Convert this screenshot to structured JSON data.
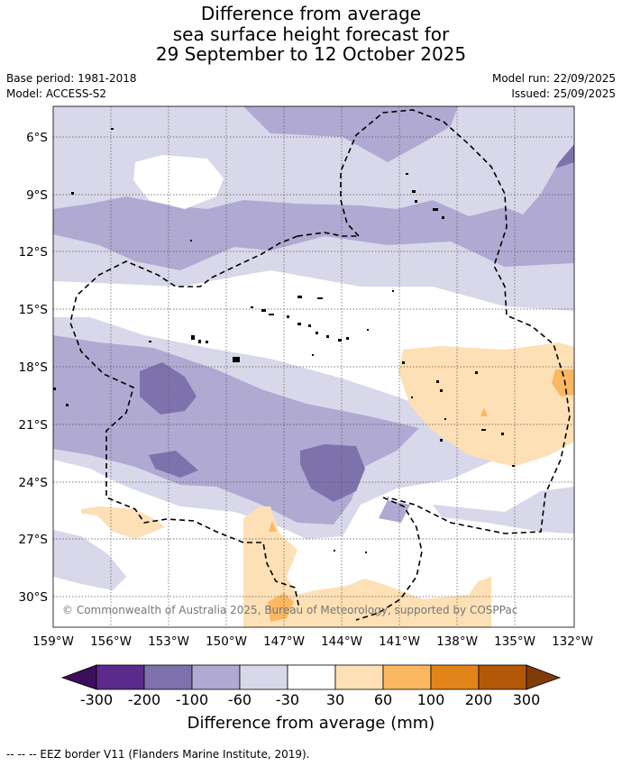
{
  "title": {
    "line1": "Difference from average",
    "line2": "sea surface height forecast for",
    "line3": "29 September to 12 October 2025"
  },
  "meta": {
    "base_period": "Base period: 1981-2018",
    "model": "Model: ACCESS-S2",
    "model_run": "Model run: 22/09/2025",
    "issued": "Issued: 25/09/2025"
  },
  "map": {
    "longitude_labels": [
      "159°W",
      "156°W",
      "153°W",
      "150°W",
      "147°W",
      "144°W",
      "141°W",
      "138°W",
      "135°W",
      "132°W"
    ],
    "latitude_labels": [
      "6°S",
      "9°S",
      "12°S",
      "15°S",
      "18°S",
      "21°S",
      "24°S",
      "27°S",
      "30°S"
    ],
    "watermark": "© Commonwealth of Australia 2025, Bureau of Meteorology, supported by COSPPac"
  },
  "colorbar": {
    "ticks": [
      "-300",
      "-200",
      "-100",
      "-60",
      "-30",
      "30",
      "60",
      "100",
      "200",
      "300"
    ],
    "colors": [
      "#3b0f5a",
      "#5b2a8a",
      "#7e72ad",
      "#b0a9d2",
      "#d8d8ea",
      "#ffffff",
      "#fde0b5",
      "#fbb860",
      "#e2841a",
      "#b35806",
      "#7f3b08"
    ],
    "title": "Difference from average (mm)"
  },
  "footnote": "--  --  -- EEZ border V11 (Flanders Marine Institute, 2019).",
  "colors": {
    "neg_lightest": "#d8d8ea",
    "neg_light": "#b0a9d2",
    "neg_mid": "#7e72ad",
    "pos_light": "#fde0b5",
    "pos_mid": "#fbb860"
  }
}
